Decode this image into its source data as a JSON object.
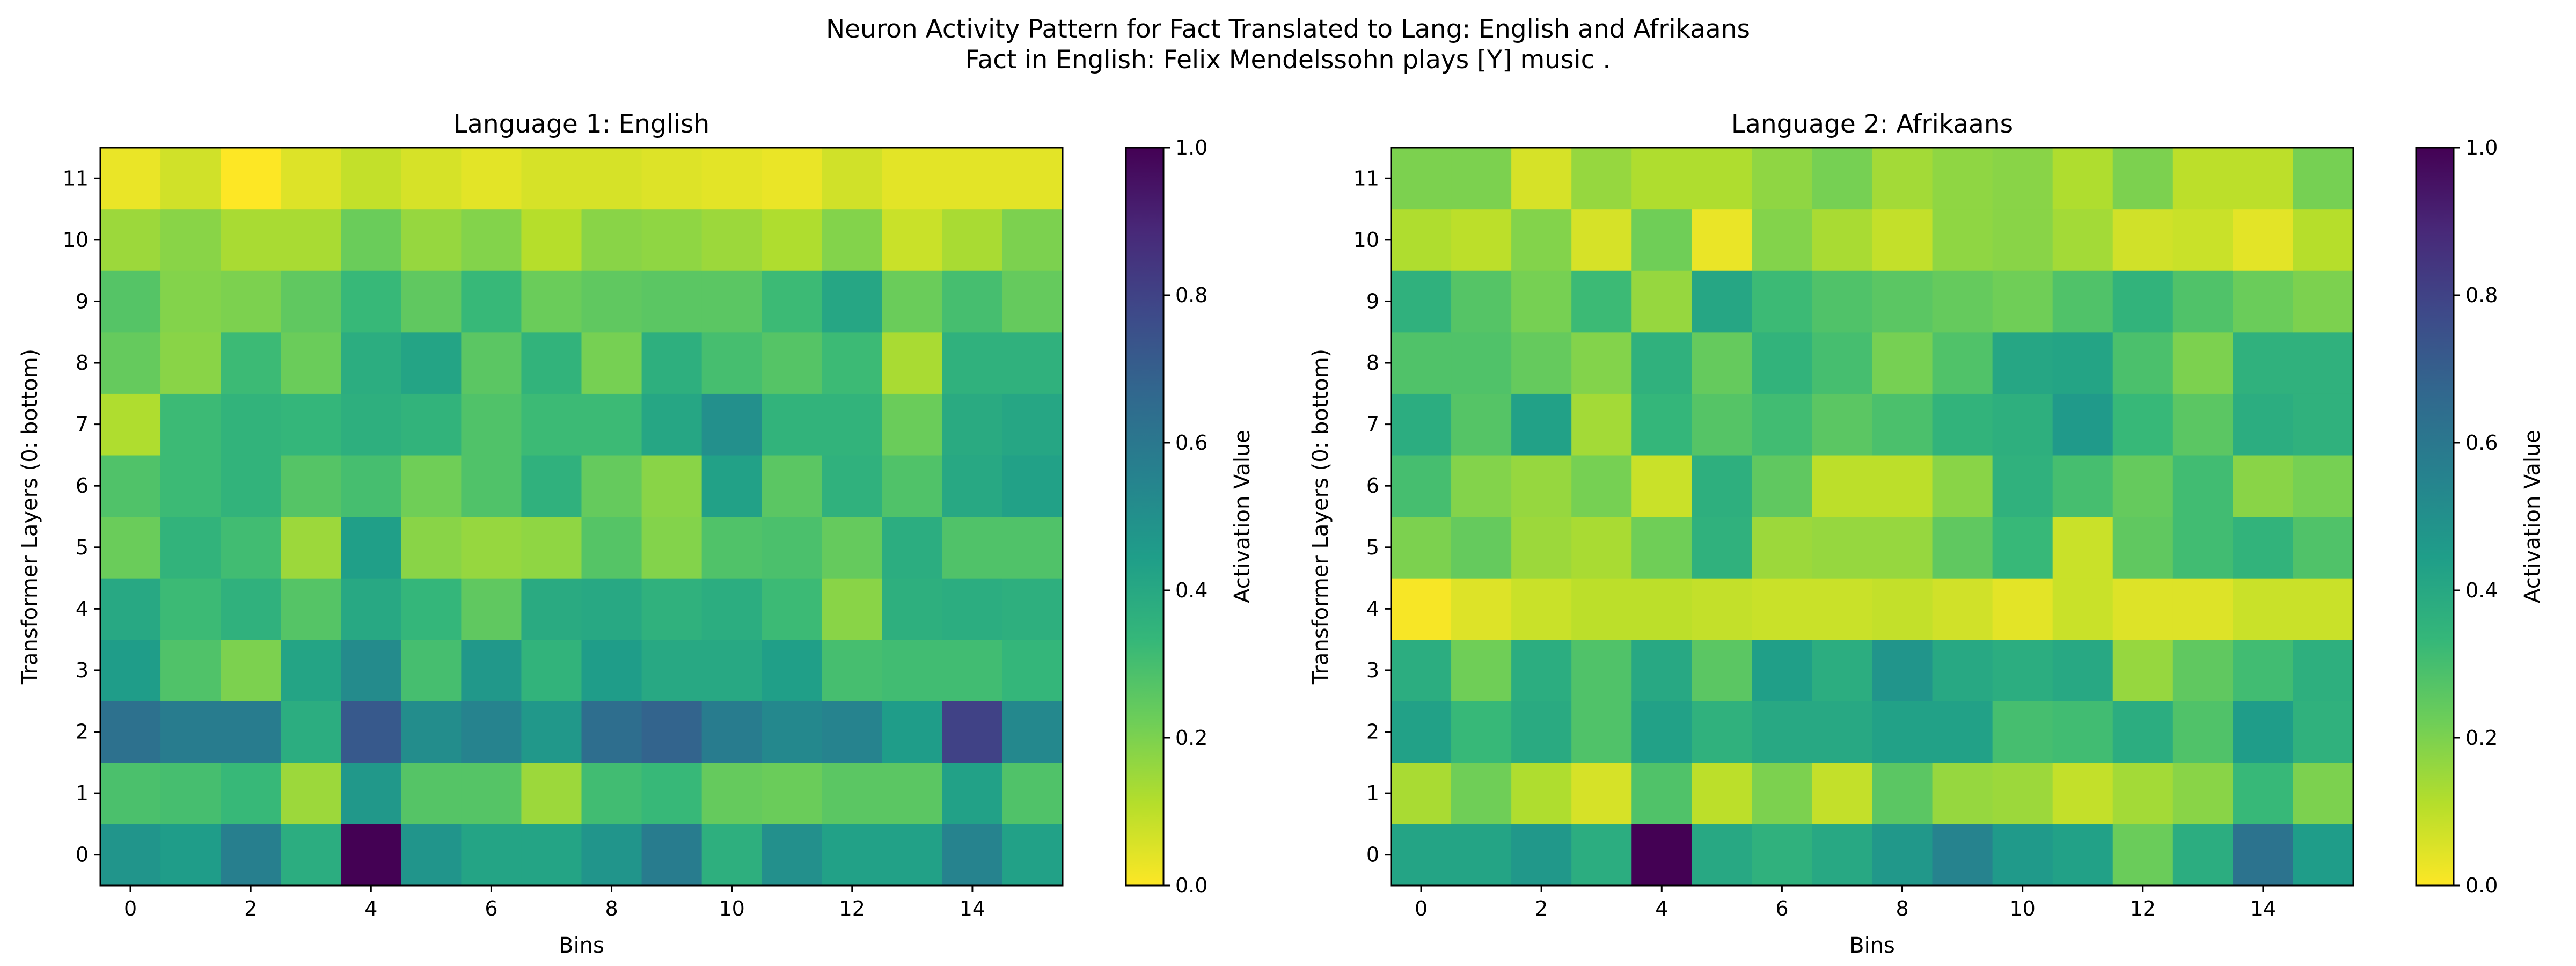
{
  "figure": {
    "title_line1": "Neuron Activity Pattern for Fact Translated to Lang: English and Afrikaans",
    "title_line2": "Fact in English: Felix Mendelssohn plays [Y] music ."
  },
  "colorscale": {
    "name": "viridis_r",
    "stops": [
      "#fde725",
      "#b5de2b",
      "#6ece58",
      "#35b779",
      "#1f9e89",
      "#26828e",
      "#31688e",
      "#3e4989",
      "#482878",
      "#440154"
    ],
    "label": "Activation Value",
    "ticks": [
      "0.0",
      "0.2",
      "0.4",
      "0.6",
      "0.8",
      "1.0"
    ],
    "range": [
      0,
      1
    ]
  },
  "chart_data": [
    {
      "type": "heatmap",
      "title": "Language 1: English",
      "xlabel": "Bins",
      "ylabel": "Transformer Layers (0: bottom)",
      "x_ticks": [
        "0",
        "2",
        "4",
        "6",
        "8",
        "10",
        "12",
        "14"
      ],
      "y_ticks": [
        "0",
        "1",
        "2",
        "3",
        "4",
        "5",
        "6",
        "7",
        "8",
        "9",
        "10",
        "11"
      ],
      "cols": 16,
      "rows_bottom_to_top": [
        [
          0.48,
          0.45,
          0.57,
          0.38,
          1.0,
          0.48,
          0.42,
          0.42,
          0.48,
          0.58,
          0.37,
          0.5,
          0.43,
          0.43,
          0.55,
          0.43
        ],
        [
          0.29,
          0.3,
          0.33,
          0.15,
          0.47,
          0.27,
          0.27,
          0.15,
          0.31,
          0.33,
          0.24,
          0.23,
          0.26,
          0.26,
          0.43,
          0.28
        ],
        [
          0.63,
          0.58,
          0.58,
          0.38,
          0.72,
          0.51,
          0.55,
          0.47,
          0.64,
          0.68,
          0.58,
          0.53,
          0.55,
          0.45,
          0.8,
          0.53
        ],
        [
          0.45,
          0.28,
          0.2,
          0.42,
          0.52,
          0.3,
          0.47,
          0.35,
          0.45,
          0.4,
          0.4,
          0.44,
          0.3,
          0.31,
          0.31,
          0.34
        ],
        [
          0.4,
          0.32,
          0.36,
          0.27,
          0.4,
          0.34,
          0.25,
          0.39,
          0.4,
          0.36,
          0.38,
          0.32,
          0.18,
          0.37,
          0.38,
          0.37
        ],
        [
          0.23,
          0.35,
          0.31,
          0.15,
          0.44,
          0.18,
          0.16,
          0.17,
          0.27,
          0.19,
          0.28,
          0.29,
          0.24,
          0.38,
          0.28,
          0.28
        ],
        [
          0.28,
          0.32,
          0.35,
          0.27,
          0.3,
          0.22,
          0.28,
          0.36,
          0.24,
          0.18,
          0.43,
          0.26,
          0.36,
          0.28,
          0.4,
          0.43
        ],
        [
          0.12,
          0.32,
          0.35,
          0.34,
          0.37,
          0.35,
          0.28,
          0.32,
          0.32,
          0.41,
          0.5,
          0.35,
          0.35,
          0.23,
          0.39,
          0.41
        ],
        [
          0.24,
          0.18,
          0.32,
          0.23,
          0.38,
          0.42,
          0.26,
          0.35,
          0.21,
          0.37,
          0.3,
          0.27,
          0.32,
          0.13,
          0.36,
          0.36
        ],
        [
          0.27,
          0.19,
          0.2,
          0.25,
          0.33,
          0.25,
          0.33,
          0.23,
          0.25,
          0.26,
          0.26,
          0.32,
          0.41,
          0.23,
          0.3,
          0.24
        ],
        [
          0.15,
          0.18,
          0.13,
          0.13,
          0.23,
          0.16,
          0.19,
          0.11,
          0.18,
          0.17,
          0.15,
          0.12,
          0.19,
          0.08,
          0.13,
          0.2
        ],
        [
          0.03,
          0.07,
          0.0,
          0.05,
          0.09,
          0.06,
          0.04,
          0.06,
          0.06,
          0.05,
          0.04,
          0.03,
          0.07,
          0.04,
          0.04,
          0.04
        ]
      ]
    },
    {
      "type": "heatmap",
      "title": "Language 2: Afrikaans",
      "xlabel": "Bins",
      "ylabel": "Transformer Layers (0: bottom)",
      "x_ticks": [
        "0",
        "2",
        "4",
        "6",
        "8",
        "10",
        "12",
        "14"
      ],
      "y_ticks": [
        "0",
        "1",
        "2",
        "3",
        "4",
        "5",
        "6",
        "7",
        "8",
        "9",
        "10",
        "11"
      ],
      "cols": 16,
      "rows_bottom_to_top": [
        [
          0.42,
          0.42,
          0.47,
          0.38,
          1.0,
          0.4,
          0.36,
          0.4,
          0.47,
          0.55,
          0.46,
          0.43,
          0.23,
          0.38,
          0.62,
          0.45
        ],
        [
          0.13,
          0.22,
          0.12,
          0.06,
          0.28,
          0.1,
          0.2,
          0.09,
          0.26,
          0.16,
          0.15,
          0.09,
          0.14,
          0.18,
          0.33,
          0.2
        ],
        [
          0.43,
          0.33,
          0.39,
          0.28,
          0.43,
          0.36,
          0.4,
          0.4,
          0.43,
          0.43,
          0.3,
          0.31,
          0.38,
          0.28,
          0.45,
          0.36
        ],
        [
          0.38,
          0.22,
          0.38,
          0.28,
          0.4,
          0.26,
          0.44,
          0.38,
          0.48,
          0.4,
          0.38,
          0.4,
          0.16,
          0.25,
          0.31,
          0.37
        ],
        [
          0.01,
          0.05,
          0.08,
          0.1,
          0.1,
          0.09,
          0.08,
          0.08,
          0.09,
          0.07,
          0.04,
          0.08,
          0.05,
          0.05,
          0.08,
          0.08
        ],
        [
          0.2,
          0.24,
          0.15,
          0.13,
          0.22,
          0.36,
          0.15,
          0.16,
          0.16,
          0.25,
          0.33,
          0.08,
          0.25,
          0.31,
          0.35,
          0.28
        ],
        [
          0.3,
          0.19,
          0.16,
          0.21,
          0.08,
          0.37,
          0.25,
          0.1,
          0.1,
          0.18,
          0.36,
          0.3,
          0.24,
          0.31,
          0.18,
          0.21
        ],
        [
          0.38,
          0.27,
          0.43,
          0.14,
          0.34,
          0.27,
          0.31,
          0.26,
          0.29,
          0.35,
          0.37,
          0.46,
          0.33,
          0.26,
          0.38,
          0.36
        ],
        [
          0.28,
          0.28,
          0.24,
          0.19,
          0.36,
          0.24,
          0.35,
          0.3,
          0.21,
          0.28,
          0.41,
          0.42,
          0.29,
          0.2,
          0.36,
          0.36
        ],
        [
          0.36,
          0.27,
          0.21,
          0.32,
          0.16,
          0.41,
          0.32,
          0.28,
          0.26,
          0.24,
          0.22,
          0.28,
          0.35,
          0.28,
          0.23,
          0.2
        ],
        [
          0.12,
          0.1,
          0.19,
          0.06,
          0.22,
          0.03,
          0.19,
          0.13,
          0.09,
          0.17,
          0.18,
          0.14,
          0.07,
          0.08,
          0.04,
          0.11
        ],
        [
          0.2,
          0.2,
          0.06,
          0.16,
          0.12,
          0.12,
          0.17,
          0.21,
          0.14,
          0.17,
          0.18,
          0.12,
          0.2,
          0.1,
          0.1,
          0.21
        ]
      ]
    }
  ]
}
